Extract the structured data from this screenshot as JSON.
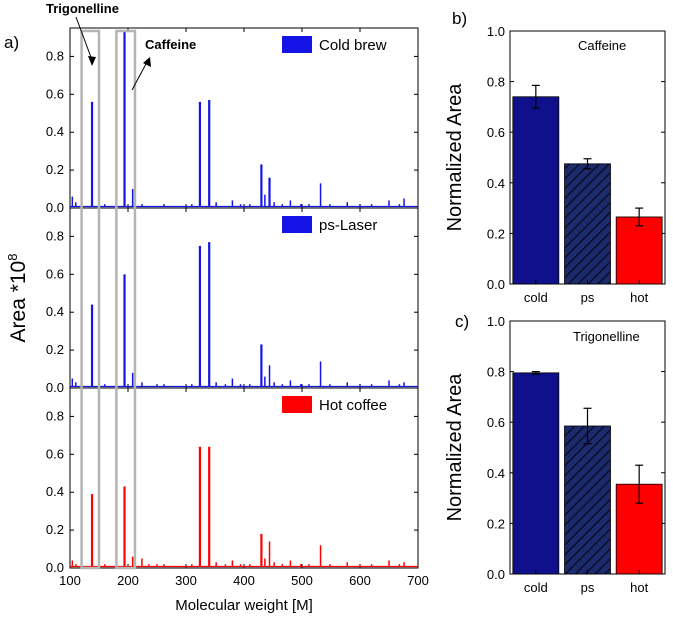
{
  "chart_data": [
    {
      "panel": "a)",
      "type": "bar",
      "subtype": "mass-spectrum-stacked",
      "xlabel": "Molecular weight [M]",
      "ylabel": "Area *10",
      "ylabel_sup": "8",
      "xlim": [
        100,
        700
      ],
      "xticks": [
        100,
        200,
        300,
        400,
        500,
        600,
        700
      ],
      "ylim": [
        0,
        0.95
      ],
      "yticks": [
        0.0,
        0.2,
        0.4,
        0.6,
        0.8
      ],
      "annotations": {
        "trigonelline": "Trigonelline",
        "caffeine": "Caffeine",
        "trigonelline_box": [
          120,
          150
        ],
        "caffeine_box": [
          180,
          212
        ]
      },
      "series": [
        {
          "name": "Cold brew",
          "color": "#1414e6",
          "peaks": [
            [
              104,
              0.06
            ],
            [
              110,
              0.03
            ],
            [
              120,
              0.02
            ],
            [
              138,
              0.56
            ],
            [
              150,
              0.01
            ],
            [
              160,
              0.02
            ],
            [
              180,
              0.02
            ],
            [
              194,
              0.93
            ],
            [
              200,
              0.01
            ],
            [
              208,
              0.1
            ],
            [
              224,
              0.02
            ],
            [
              236,
              0.01
            ],
            [
              250,
              0.01
            ],
            [
              262,
              0.02
            ],
            [
              270,
              0.01
            ],
            [
              284,
              0.01
            ],
            [
              300,
              0.01
            ],
            [
              310,
              0.02
            ],
            [
              324,
              0.56
            ],
            [
              340,
              0.57
            ],
            [
              352,
              0.03
            ],
            [
              368,
              0.01
            ],
            [
              380,
              0.04
            ],
            [
              394,
              0.02
            ],
            [
              410,
              0.02
            ],
            [
              430,
              0.23
            ],
            [
              436,
              0.07
            ],
            [
              444,
              0.16
            ],
            [
              452,
              0.03
            ],
            [
              466,
              0.02
            ],
            [
              480,
              0.04
            ],
            [
              498,
              0.02
            ],
            [
              512,
              0.02
            ],
            [
              532,
              0.13
            ],
            [
              548,
              0.02
            ],
            [
              562,
              0.01
            ],
            [
              578,
              0.03
            ],
            [
              600,
              0.02
            ],
            [
              620,
              0.02
            ],
            [
              636,
              0.01
            ],
            [
              650,
              0.04
            ],
            [
              668,
              0.02
            ],
            [
              676,
              0.05
            ],
            [
              690,
              0.01
            ]
          ]
        },
        {
          "name": "ps-Laser",
          "color": "#1414e6",
          "peaks": [
            [
              104,
              0.05
            ],
            [
              110,
              0.03
            ],
            [
              120,
              0.01
            ],
            [
              138,
              0.44
            ],
            [
              150,
              0.01
            ],
            [
              160,
              0.02
            ],
            [
              180,
              0.03
            ],
            [
              194,
              0.6
            ],
            [
              200,
              0.01
            ],
            [
              208,
              0.08
            ],
            [
              224,
              0.03
            ],
            [
              236,
              0.01
            ],
            [
              250,
              0.02
            ],
            [
              262,
              0.02
            ],
            [
              270,
              0.01
            ],
            [
              284,
              0.01
            ],
            [
              300,
              0.01
            ],
            [
              310,
              0.02
            ],
            [
              324,
              0.75
            ],
            [
              340,
              0.77
            ],
            [
              352,
              0.03
            ],
            [
              368,
              0.02
            ],
            [
              380,
              0.05
            ],
            [
              394,
              0.02
            ],
            [
              410,
              0.02
            ],
            [
              430,
              0.23
            ],
            [
              436,
              0.06
            ],
            [
              444,
              0.12
            ],
            [
              452,
              0.03
            ],
            [
              466,
              0.02
            ],
            [
              480,
              0.04
            ],
            [
              498,
              0.02
            ],
            [
              512,
              0.02
            ],
            [
              532,
              0.14
            ],
            [
              548,
              0.02
            ],
            [
              562,
              0.01
            ],
            [
              578,
              0.03
            ],
            [
              600,
              0.02
            ],
            [
              620,
              0.02
            ],
            [
              636,
              0.01
            ],
            [
              650,
              0.04
            ],
            [
              668,
              0.02
            ],
            [
              676,
              0.03
            ],
            [
              690,
              0.01
            ]
          ]
        },
        {
          "name": "Hot coffee",
          "color": "#ff0000",
          "peaks": [
            [
              104,
              0.04
            ],
            [
              110,
              0.02
            ],
            [
              120,
              0.01
            ],
            [
              138,
              0.39
            ],
            [
              150,
              0.01
            ],
            [
              160,
              0.02
            ],
            [
              180,
              0.03
            ],
            [
              194,
              0.43
            ],
            [
              200,
              0.01
            ],
            [
              208,
              0.06
            ],
            [
              224,
              0.05
            ],
            [
              236,
              0.02
            ],
            [
              250,
              0.02
            ],
            [
              262,
              0.02
            ],
            [
              270,
              0.01
            ],
            [
              284,
              0.01
            ],
            [
              300,
              0.01
            ],
            [
              310,
              0.02
            ],
            [
              324,
              0.64
            ],
            [
              340,
              0.64
            ],
            [
              352,
              0.03
            ],
            [
              368,
              0.02
            ],
            [
              380,
              0.04
            ],
            [
              394,
              0.02
            ],
            [
              410,
              0.02
            ],
            [
              430,
              0.18
            ],
            [
              436,
              0.05
            ],
            [
              444,
              0.14
            ],
            [
              452,
              0.03
            ],
            [
              466,
              0.02
            ],
            [
              480,
              0.04
            ],
            [
              498,
              0.02
            ],
            [
              512,
              0.02
            ],
            [
              532,
              0.12
            ],
            [
              548,
              0.02
            ],
            [
              562,
              0.01
            ],
            [
              578,
              0.03
            ],
            [
              600,
              0.02
            ],
            [
              620,
              0.02
            ],
            [
              636,
              0.01
            ],
            [
              650,
              0.04
            ],
            [
              668,
              0.02
            ],
            [
              676,
              0.03
            ],
            [
              690,
              0.01
            ]
          ]
        }
      ]
    },
    {
      "panel": "b)",
      "type": "bar",
      "title": "Caffeine",
      "ylabel": "Normalized Area",
      "categories": [
        "cold",
        "ps",
        "hot"
      ],
      "values": [
        0.74,
        0.475,
        0.265
      ],
      "errors": [
        0.045,
        0.02,
        0.035
      ],
      "ylim": [
        0.0,
        1.0
      ],
      "yticks": [
        0.0,
        0.2,
        0.4,
        0.6,
        0.8,
        1.0
      ],
      "colors": [
        "#10108c",
        "#1c2a6e",
        "#ff0000"
      ],
      "hatched": [
        false,
        true,
        false
      ]
    },
    {
      "panel": "c)",
      "type": "bar",
      "title": "Trigonelline",
      "ylabel": "Normalized Area",
      "categories": [
        "cold",
        "ps",
        "hot"
      ],
      "values": [
        0.795,
        0.585,
        0.355
      ],
      "errors": [
        0.005,
        0.07,
        0.075
      ],
      "ylim": [
        0.0,
        1.0
      ],
      "yticks": [
        0.0,
        0.2,
        0.4,
        0.6,
        0.8,
        1.0
      ],
      "colors": [
        "#10108c",
        "#1c2a6e",
        "#ff0000"
      ],
      "hatched": [
        false,
        true,
        false
      ]
    }
  ]
}
